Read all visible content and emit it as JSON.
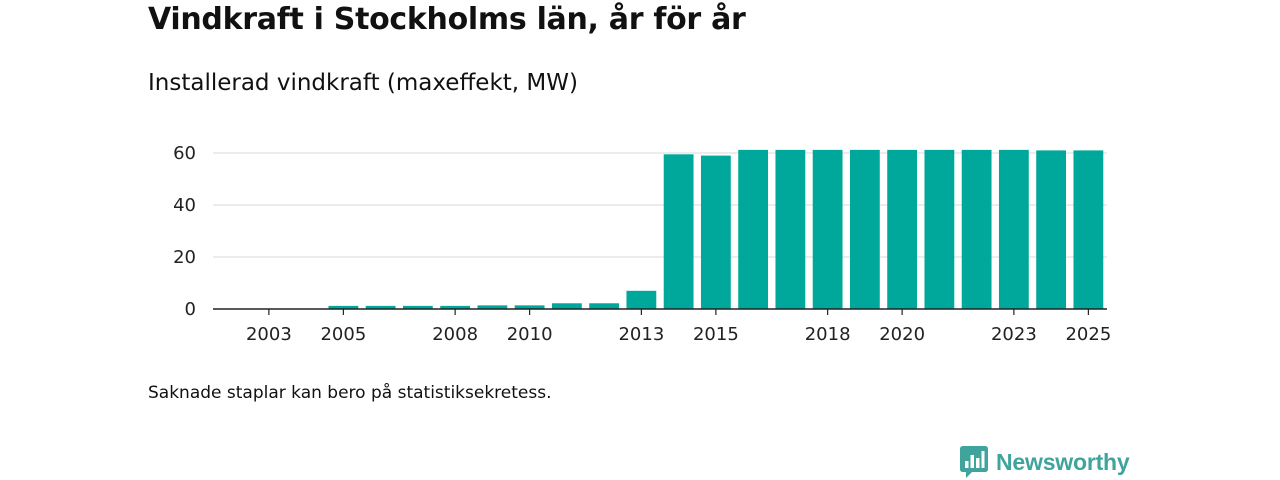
{
  "header": {
    "title": "Vindkraft i Stockholms län, år för år",
    "subtitle": "Installerad vindkraft (maxeffekt, MW)"
  },
  "footnote": "Saknade staplar kan bero på statistiksekretess.",
  "brand": {
    "name": "Newsworthy",
    "icon": "newsworthy-logo-icon"
  },
  "colors": {
    "bar": "#00a89b",
    "grid": "#d9d9d9",
    "axis": "#222222",
    "brand": "#3fa49b"
  },
  "chart_data": {
    "type": "bar",
    "title": "Installerad vindkraft (maxeffekt, MW)",
    "xlabel": "",
    "ylabel": "",
    "categories": [
      "2002",
      "2003",
      "2004",
      "2005",
      "2006",
      "2007",
      "2008",
      "2009",
      "2010",
      "2011",
      "2012",
      "2013",
      "2014",
      "2015",
      "2016",
      "2017",
      "2018",
      "2019",
      "2020",
      "2021",
      "2022",
      "2023",
      "2024",
      "2025"
    ],
    "values": [
      0,
      0,
      0,
      1.2,
      1.2,
      1.2,
      1.2,
      1.4,
      1.4,
      2.2,
      2.2,
      7.0,
      59.5,
      59.0,
      61.2,
      61.2,
      61.2,
      61.2,
      61.2,
      61.2,
      61.2,
      61.2,
      61.0,
      61.0
    ],
    "xticks": [
      "2003",
      "2005",
      "2008",
      "2010",
      "2013",
      "2015",
      "2018",
      "2020",
      "2023",
      "2025"
    ],
    "yticks": [
      0,
      20,
      40,
      60
    ],
    "ylim": [
      0,
      65
    ],
    "grid": true
  }
}
